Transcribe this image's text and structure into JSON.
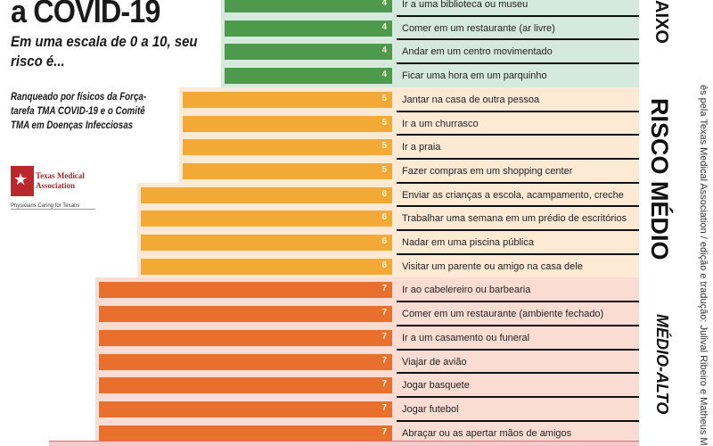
{
  "header": {
    "title": "a COVID-19",
    "subtitle": "Em uma escala de 0 a 10, seu risco é...",
    "attribution": "Ranqueado por físicos da Força-tarefa TMA COVID-19 e o Comitê TMA em Doenças Infecciosas"
  },
  "logo": {
    "name": "Texas Medical Association",
    "tagline": "Physicians Caring for Texans"
  },
  "side_labels": {
    "low": "AIXO",
    "medium": "RISCO MÉDIO",
    "medium_high": "MÉDIO-ALTO"
  },
  "credit": "ês pela Texas Medical Association / edição e tradução: Julival Ribeiro e Matheus M",
  "colors": {
    "low_bar": "#4e9a4c",
    "low_bg": "#d6e9dd",
    "medium_bar": "#f2a935",
    "medium_bg": "#fde9d4",
    "mediumhigh_bar": "#e86f2c",
    "mediumhigh_bg": "#fadcd3"
  },
  "chart_data": {
    "type": "bar",
    "orientation": "horizontal",
    "xlim": [
      0,
      10
    ],
    "categories": [
      "Ir a uma biblioteca ou museu",
      "Comer em um restaurante (ar livre)",
      "Andar em um centro movimentado",
      "Ficar uma hora em um parquinho",
      "Jantar na casa de outra pessoa",
      "Ir a um churrasco",
      "Ir a praia",
      "Fazer compras em um shopping center",
      "Enviar as crianças a escola, acampamento, creche",
      "Trabalhar uma semana em um prédio de escritórios",
      "Nadar em uma piscina pública",
      "Visitar um parente ou amigo na casa dele",
      "Ir ao cabelereiro ou barbearia",
      "Comer em um restaurante (ambiente fechado)",
      "Ir a um casamento ou funeral",
      "Viajar de avião",
      "Jogar basquete",
      "Jogar futebol",
      "Abraçar ou as apertar mãos de amigos"
    ],
    "values": [
      4,
      4,
      4,
      4,
      5,
      5,
      5,
      5,
      6,
      6,
      6,
      6,
      7,
      7,
      7,
      7,
      7,
      7,
      7
    ],
    "value_labels": [
      "4",
      "4",
      "4",
      "4",
      "5",
      "5",
      "5",
      "5",
      "6",
      "6",
      "6",
      "6",
      "7",
      "7",
      "7",
      "7",
      "7",
      "7",
      "7"
    ]
  }
}
